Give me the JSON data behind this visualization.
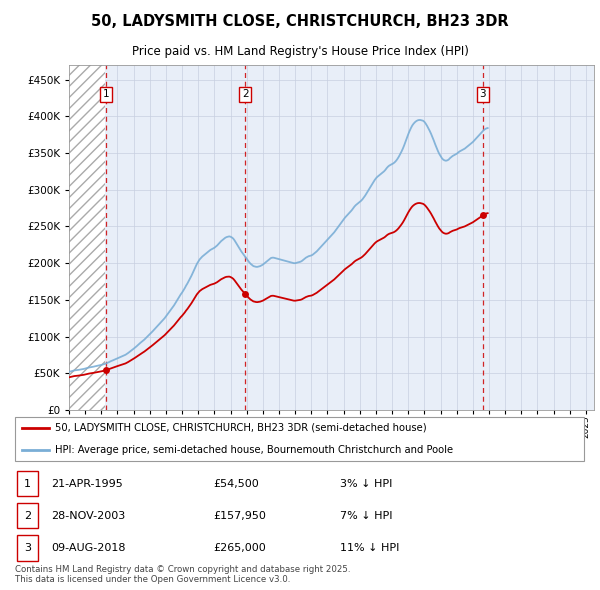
{
  "title_line1": "50, LADYSMITH CLOSE, CHRISTCHURCH, BH23 3DR",
  "title_line2": "Price paid vs. HM Land Registry's House Price Index (HPI)",
  "red_line_color": "#cc0000",
  "blue_line_color": "#7aaed6",
  "background_color": "#e8eef8",
  "grid_color": "#c8cfe0",
  "ylim": [
    0,
    470000
  ],
  "yticks": [
    0,
    50000,
    100000,
    150000,
    200000,
    250000,
    300000,
    350000,
    400000,
    450000
  ],
  "ytick_labels": [
    "£0",
    "£50K",
    "£100K",
    "£150K",
    "£200K",
    "£250K",
    "£300K",
    "£350K",
    "£400K",
    "£450K"
  ],
  "xlim_start": 1993.0,
  "xlim_end": 2025.5,
  "sale_dates": [
    1995.31,
    2003.91,
    2018.61
  ],
  "sale_prices": [
    54500,
    157950,
    265000
  ],
  "sale_labels": [
    "1",
    "2",
    "3"
  ],
  "sale_date_strs": [
    "21-APR-1995",
    "28-NOV-2003",
    "09-AUG-2018"
  ],
  "sale_price_strs": [
    "£54,500",
    "£157,950",
    "£265,000"
  ],
  "sale_hpi_strs": [
    "3% ↓ HPI",
    "7% ↓ HPI",
    "11% ↓ HPI"
  ],
  "legend_red_label": "50, LADYSMITH CLOSE, CHRISTCHURCH, BH23 3DR (semi-detached house)",
  "legend_blue_label": "HPI: Average price, semi-detached house, Bournemouth Christchurch and Poole",
  "footer_text": "Contains HM Land Registry data © Crown copyright and database right 2025.\nThis data is licensed under the Open Government Licence v3.0.",
  "hpi_monthly": {
    "start_year": 1993,
    "start_month": 1,
    "values": [
      52000,
      52500,
      53000,
      53500,
      54000,
      54200,
      54500,
      54700,
      55000,
      55200,
      55500,
      56000,
      56500,
      57000,
      57500,
      58000,
      58300,
      58600,
      59000,
      59400,
      59800,
      60200,
      60600,
      61000,
      61500,
      62000,
      62500,
      63000,
      63800,
      64600,
      65500,
      66500,
      67200,
      68000,
      68800,
      69700,
      70500,
      71300,
      72000,
      72800,
      73600,
      74400,
      75300,
      76500,
      77800,
      79200,
      80600,
      82000,
      83500,
      85000,
      86500,
      88200,
      89800,
      91500,
      93000,
      94500,
      96000,
      97800,
      99600,
      101500,
      103200,
      105000,
      107000,
      109000,
      111000,
      113000,
      115000,
      117000,
      119000,
      121000,
      123000,
      125000,
      127500,
      130000,
      132500,
      135000,
      137500,
      140000,
      142500,
      145500,
      148500,
      151500,
      154500,
      157500,
      160000,
      163000,
      166000,
      169500,
      172500,
      176000,
      179500,
      183000,
      187000,
      191000,
      195000,
      199000,
      202000,
      205000,
      207000,
      209000,
      210500,
      212000,
      213500,
      215000,
      216500,
      218000,
      219000,
      220000,
      221000,
      222500,
      224000,
      226000,
      228000,
      230000,
      231500,
      233000,
      234500,
      235500,
      236000,
      236500,
      236000,
      235000,
      233500,
      231000,
      228000,
      225000,
      222000,
      219000,
      216000,
      213500,
      211000,
      208500,
      206000,
      203500,
      201000,
      199000,
      197500,
      196000,
      195500,
      195000,
      195000,
      195500,
      196000,
      197000,
      198000,
      199500,
      201000,
      202500,
      204000,
      205500,
      207000,
      207500,
      207500,
      207000,
      206500,
      206000,
      205500,
      205000,
      204500,
      204000,
      203500,
      203000,
      202500,
      202000,
      201500,
      201000,
      200500,
      200000,
      200000,
      200500,
      201000,
      201500,
      202000,
      203000,
      204500,
      206000,
      207500,
      208500,
      209500,
      210000,
      210500,
      211500,
      213000,
      214500,
      216000,
      218000,
      220000,
      222000,
      224000,
      226000,
      228000,
      230000,
      232000,
      234000,
      236000,
      238000,
      240000,
      242000,
      244500,
      247000,
      249500,
      252000,
      254500,
      257000,
      259500,
      262000,
      264000,
      266000,
      268000,
      270000,
      272000,
      274500,
      277000,
      279000,
      280500,
      282000,
      283500,
      285000,
      287000,
      289500,
      292000,
      295000,
      298000,
      301000,
      304000,
      307000,
      310000,
      313000,
      315500,
      317500,
      319000,
      320500,
      322000,
      323500,
      325000,
      327000,
      329500,
      331500,
      333000,
      334000,
      335000,
      336000,
      337500,
      339500,
      342000,
      345000,
      348500,
      352000,
      356000,
      360500,
      365500,
      370500,
      375500,
      380000,
      384000,
      387500,
      390000,
      392000,
      393500,
      394500,
      395000,
      395000,
      394500,
      394000,
      392500,
      390000,
      387000,
      383500,
      380000,
      376000,
      371500,
      367000,
      362000,
      357500,
      353000,
      349000,
      346000,
      343000,
      341000,
      340000,
      339500,
      340000,
      341000,
      343000,
      344500,
      346000,
      347000,
      348000,
      349000,
      350500,
      352000,
      353000,
      354000,
      355000,
      356000,
      357500,
      359000,
      360500,
      362000,
      363500,
      365000,
      367000,
      369000,
      371000,
      373000,
      375000,
      377000,
      379000,
      381000,
      382500,
      383500,
      384000
    ]
  }
}
